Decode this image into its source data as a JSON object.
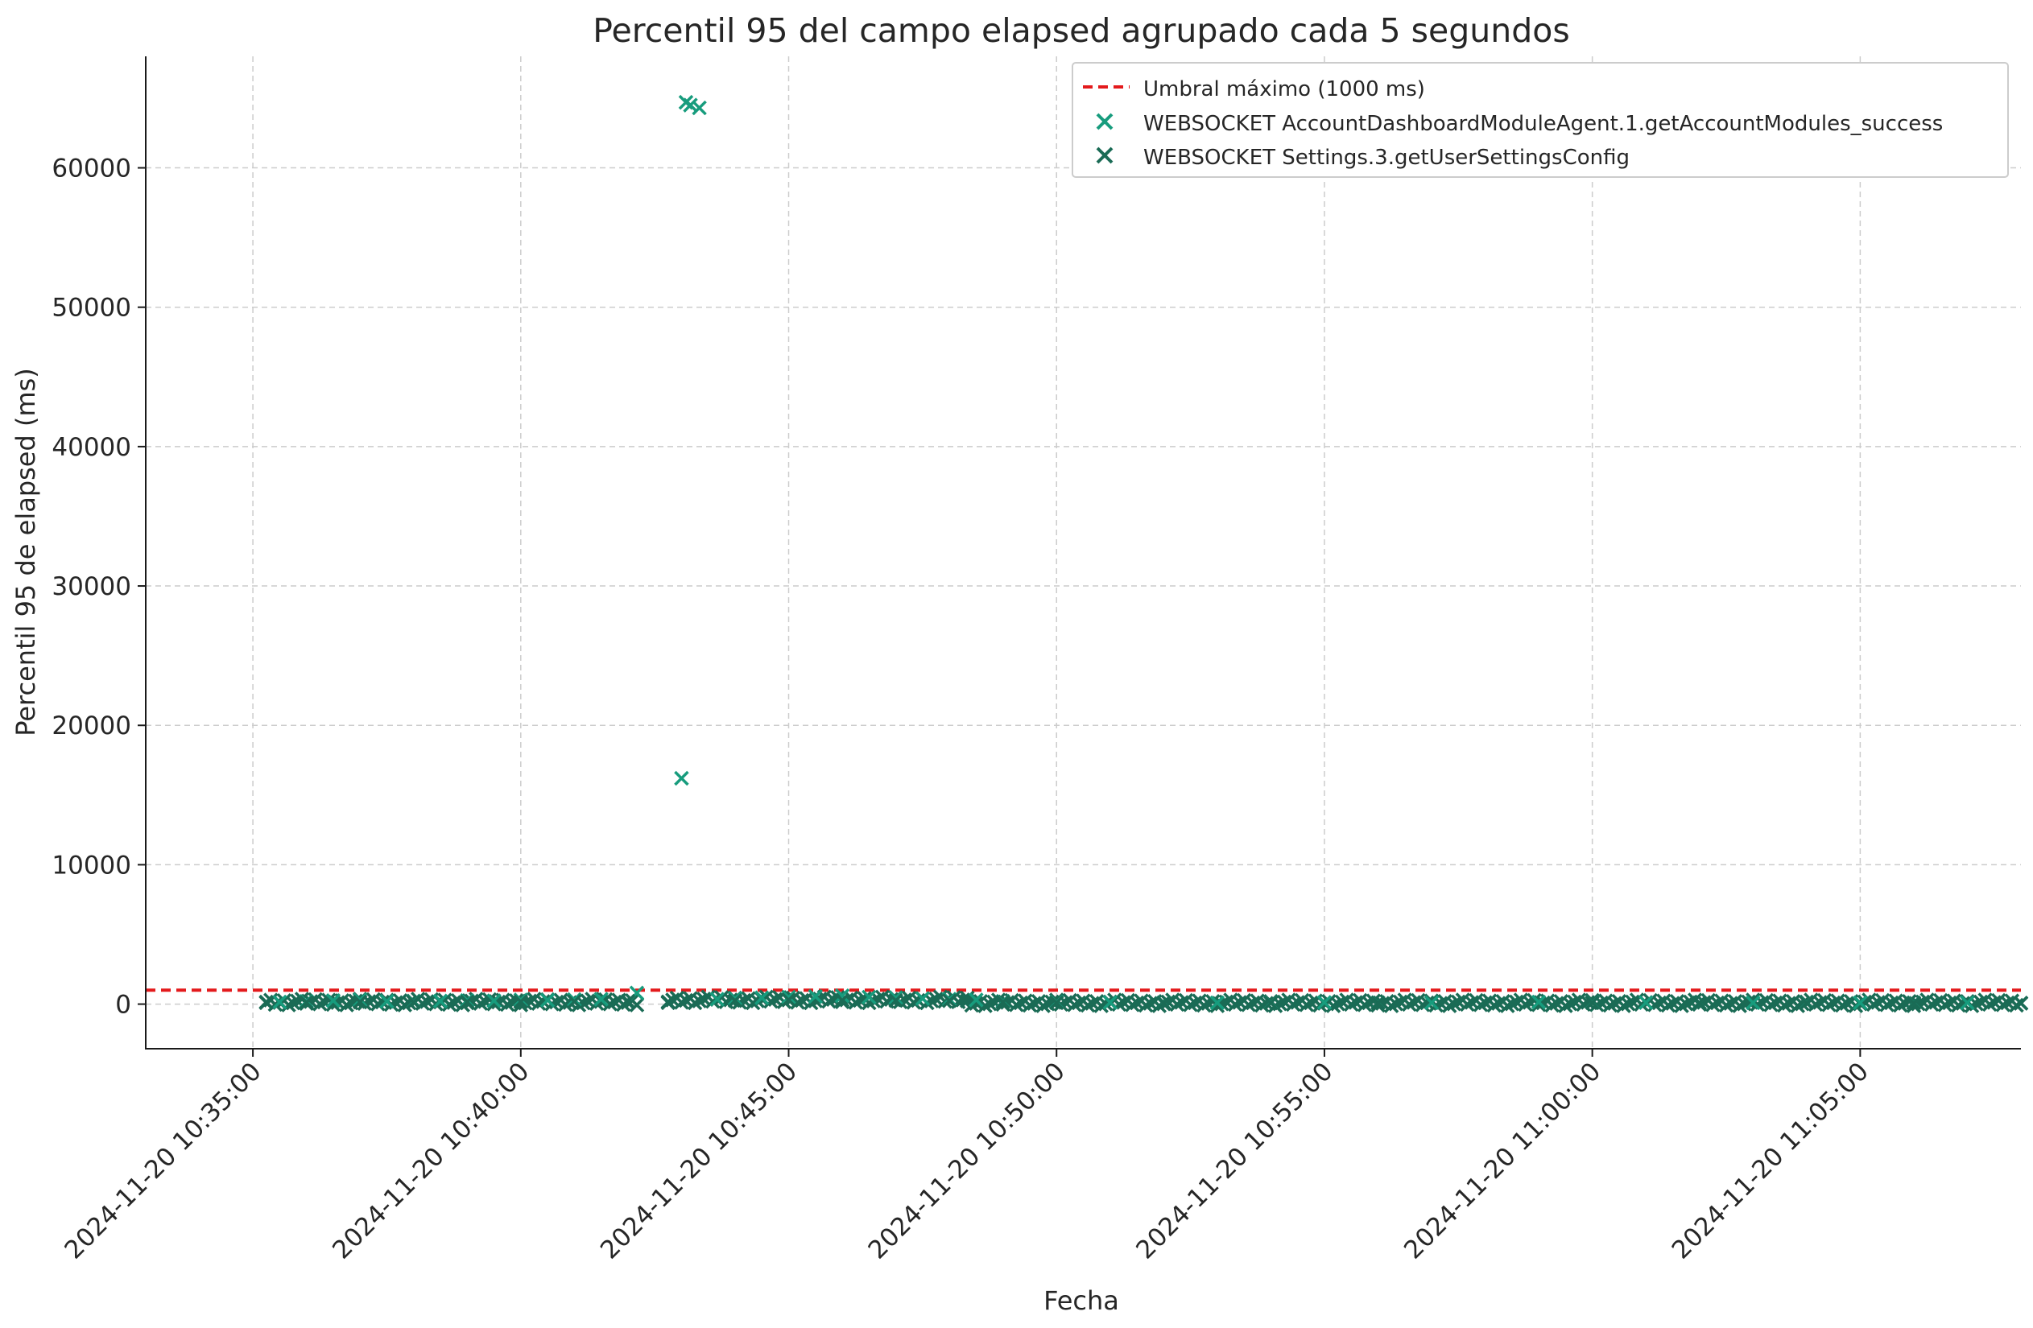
{
  "chart_data": {
    "type": "scatter",
    "title": "Percentil 95 del campo elapsed agrupado cada 5 segundos",
    "xlabel": "Fecha",
    "ylabel": "Percentil 95 de elapsed (ms)",
    "xlim": [
      "2024-11-20 10:33:00",
      "2024-11-20 11:08:00"
    ],
    "ylim": [
      -3200,
      68000
    ],
    "x_ticks": [
      "2024-11-20 10:35:00",
      "2024-11-20 10:40:00",
      "2024-11-20 10:45:00",
      "2024-11-20 10:50:00",
      "2024-11-20 10:55:00",
      "2024-11-20 11:00:00",
      "2024-11-20 11:05:00"
    ],
    "y_ticks": [
      0,
      10000,
      20000,
      30000,
      40000,
      50000,
      60000
    ],
    "grid": true,
    "legend_position": "top-right",
    "threshold": {
      "label": "Umbral máximo (1000 ms)",
      "value": 1000,
      "color": "#e31a1c",
      "style": "dashed"
    },
    "series": [
      {
        "name": "WEBSOCKET AccountDashboardModuleAgent.1.getAccountModules_success",
        "color": "#179c7d",
        "marker": "x",
        "points": [
          [
            "2024-11-20 10:35:30",
            150
          ],
          [
            "2024-11-20 10:36:00",
            200
          ],
          [
            "2024-11-20 10:36:30",
            250
          ],
          [
            "2024-11-20 10:37:00",
            300
          ],
          [
            "2024-11-20 10:37:30",
            200
          ],
          [
            "2024-11-20 10:38:00",
            180
          ],
          [
            "2024-11-20 10:38:30",
            220
          ],
          [
            "2024-11-20 10:39:00",
            260
          ],
          [
            "2024-11-20 10:39:30",
            240
          ],
          [
            "2024-11-20 10:40:00",
            300
          ],
          [
            "2024-11-20 10:40:30",
            280
          ],
          [
            "2024-11-20 10:41:00",
            320
          ],
          [
            "2024-11-20 10:41:30",
            350
          ],
          [
            "2024-11-20 10:42:10",
            800
          ],
          [
            "2024-11-20 10:43:00",
            16200
          ],
          [
            "2024-11-20 10:43:05",
            64700
          ],
          [
            "2024-11-20 10:43:10",
            64500
          ],
          [
            "2024-11-20 10:43:20",
            64300
          ],
          [
            "2024-11-20 10:43:40",
            350
          ],
          [
            "2024-11-20 10:44:00",
            400
          ],
          [
            "2024-11-20 10:44:30",
            450
          ],
          [
            "2024-11-20 10:45:00",
            500
          ],
          [
            "2024-11-20 10:45:30",
            550
          ],
          [
            "2024-11-20 10:46:00",
            600
          ],
          [
            "2024-11-20 10:46:30",
            500
          ],
          [
            "2024-11-20 10:47:00",
            450
          ],
          [
            "2024-11-20 10:47:30",
            400
          ],
          [
            "2024-11-20 10:48:00",
            350
          ],
          [
            "2024-11-20 10:48:30",
            300
          ],
          [
            "2024-11-20 10:49:00",
            200
          ],
          [
            "2024-11-20 10:50:00",
            150
          ],
          [
            "2024-11-20 10:51:00",
            120
          ],
          [
            "2024-11-20 10:52:00",
            110
          ],
          [
            "2024-11-20 10:53:00",
            100
          ],
          [
            "2024-11-20 10:54:00",
            100
          ],
          [
            "2024-11-20 10:55:00",
            120
          ],
          [
            "2024-11-20 10:56:00",
            110
          ],
          [
            "2024-11-20 10:57:00",
            100
          ],
          [
            "2024-11-20 10:58:00",
            110
          ],
          [
            "2024-11-20 10:59:00",
            150
          ],
          [
            "2024-11-20 11:00:00",
            120
          ],
          [
            "2024-11-20 11:01:00",
            110
          ],
          [
            "2024-11-20 11:02:00",
            100
          ],
          [
            "2024-11-20 11:03:00",
            100
          ],
          [
            "2024-11-20 11:04:00",
            100
          ],
          [
            "2024-11-20 11:05:00",
            100
          ],
          [
            "2024-11-20 11:06:00",
            100
          ],
          [
            "2024-11-20 11:07:00",
            100
          ]
        ]
      },
      {
        "name": "WEBSOCKET Settings.3.getUserSettingsConfig",
        "color": "#1a6b55",
        "marker": "x",
        "points": [
          [
            "2024-11-20 10:35:15",
            100
          ],
          [
            "2024-11-20 10:36:00",
            120
          ],
          [
            "2024-11-20 10:37:00",
            150
          ],
          [
            "2024-11-20 10:38:00",
            140
          ],
          [
            "2024-11-20 10:39:00",
            160
          ],
          [
            "2024-11-20 10:40:00",
            170
          ],
          [
            "2024-11-20 10:41:00",
            180
          ],
          [
            "2024-11-20 10:42:00",
            200
          ],
          [
            "2024-11-20 10:42:45",
            100
          ],
          [
            "2024-11-20 10:44:00",
            250
          ],
          [
            "2024-11-20 10:45:00",
            300
          ],
          [
            "2024-11-20 10:46:00",
            280
          ],
          [
            "2024-11-20 10:47:00",
            260
          ],
          [
            "2024-11-20 10:48:00",
            240
          ],
          [
            "2024-11-20 10:49:00",
            150
          ],
          [
            "2024-11-20 10:50:00",
            100
          ],
          [
            "2024-11-20 10:52:00",
            90
          ],
          [
            "2024-11-20 10:54:00",
            80
          ],
          [
            "2024-11-20 10:56:00",
            90
          ],
          [
            "2024-11-20 10:58:00",
            100
          ],
          [
            "2024-11-20 11:00:00",
            100
          ],
          [
            "2024-11-20 11:02:00",
            90
          ],
          [
            "2024-11-20 11:04:00",
            80
          ],
          [
            "2024-11-20 11:06:00",
            80
          ],
          [
            "2024-11-20 11:08:00",
            80
          ]
        ],
        "continuous_bands": [
          {
            "from": "2024-11-20 10:35:15",
            "to": "2024-11-20 10:42:10",
            "level": 150
          },
          {
            "from": "2024-11-20 10:42:45",
            "to": "2024-11-20 10:48:20",
            "level": 300
          },
          {
            "from": "2024-11-20 10:48:20",
            "to": "2024-11-20 11:08:00",
            "level": 90
          }
        ]
      }
    ]
  }
}
